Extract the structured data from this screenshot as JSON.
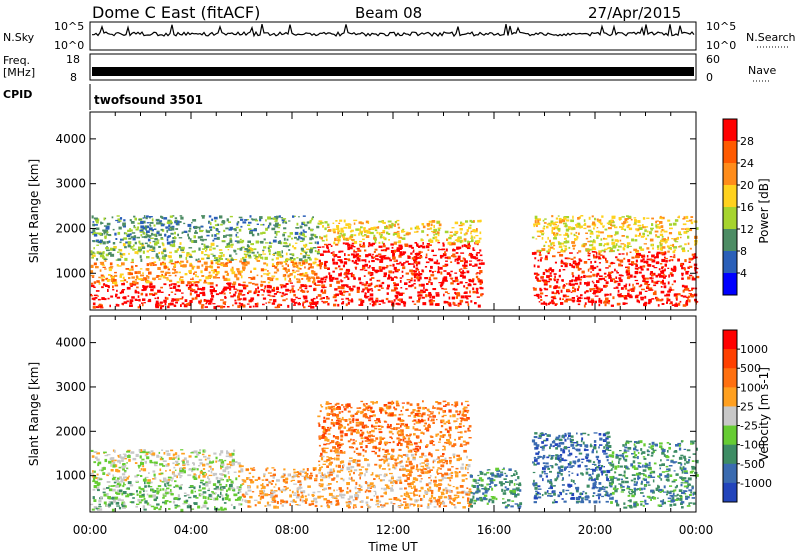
{
  "header": {
    "station": "Dome C East (fitACF)",
    "beam": "Beam 08",
    "date": "27/Apr/2015"
  },
  "top_panels": {
    "nsky_label": "N.Sky",
    "nsky_ticks": [
      "10^5",
      "10^0"
    ],
    "nsky_right_ticks": [
      "10^5",
      "10^0"
    ],
    "nsearch_label": "N.Search",
    "freq_label": "Freq.",
    "freq_unit": "[MHz]",
    "freq_ticks": [
      "18",
      "8"
    ],
    "nave_label": "Nave",
    "nave_ticks": [
      "60",
      "0"
    ],
    "cpid_label": "CPID",
    "cpid_value": "twofsound 3501"
  },
  "chart_data": [
    {
      "type": "heatmap",
      "title": "",
      "xlabel": "Time UT",
      "ylabel": "Slant Range [km]",
      "xticks": [
        "00:00",
        "04:00",
        "08:00",
        "12:00",
        "16:00",
        "20:00",
        "00:00"
      ],
      "xlim_hours": [
        0,
        24
      ],
      "yticks": [
        1000,
        2000,
        3000,
        4000
      ],
      "ylim": [
        180,
        4600
      ],
      "colorbar": {
        "label": "Power [dB]",
        "ticks": [
          "4",
          "8",
          "12",
          "16",
          "20",
          "24",
          "28"
        ],
        "colors": [
          "#0000ff",
          "#2a5fb8",
          "#4d8c64",
          "#a6d42e",
          "#ffd21e",
          "#ff8c1a",
          "#ff5a00",
          "#ff0000"
        ]
      },
      "bands": [
        {
          "t": [
            0.0,
            9.0
          ],
          "r": [
            250,
            800
          ],
          "level": 7
        },
        {
          "t": [
            0.0,
            9.0
          ],
          "r": [
            800,
            1300
          ],
          "level": 5
        },
        {
          "t": [
            0.0,
            9.0
          ],
          "r": [
            1300,
            1700
          ],
          "level": 3
        },
        {
          "t": [
            0.0,
            9.0
          ],
          "r": [
            1700,
            2300
          ],
          "level": 2
        },
        {
          "t": [
            9.0,
            15.5
          ],
          "r": [
            300,
            1700
          ],
          "level": 7
        },
        {
          "t": [
            9.0,
            15.5
          ],
          "r": [
            1700,
            2200
          ],
          "level": 4
        },
        {
          "t": [
            17.5,
            24.0
          ],
          "r": [
            300,
            1500
          ],
          "level": 7
        },
        {
          "t": [
            17.5,
            24.0
          ],
          "r": [
            1500,
            2300
          ],
          "level": 4
        }
      ]
    },
    {
      "type": "heatmap",
      "title": "",
      "xlabel": "Time UT",
      "ylabel": "Slant Range [km]",
      "xticks": [
        "00:00",
        "04:00",
        "08:00",
        "12:00",
        "16:00",
        "20:00",
        "00:00"
      ],
      "xlim_hours": [
        0,
        24
      ],
      "yticks": [
        1000,
        2000,
        3000,
        4000
      ],
      "ylim": [
        180,
        4600
      ],
      "colorbar": {
        "label": "Velocity [m s-1]",
        "ticks": [
          "1000",
          "500",
          "100",
          "25",
          "-25",
          "-100",
          "-500",
          "-1000"
        ],
        "colors": [
          "#2244bb",
          "#3a6bb0",
          "#3d8c64",
          "#66cc33",
          "#c8c8c8",
          "#ffa020",
          "#ff7010",
          "#ff4000",
          "#ff0000"
        ]
      },
      "bands": [
        {
          "t": [
            0.0,
            6.0
          ],
          "r": [
            250,
            900
          ],
          "level": 3
        },
        {
          "t": [
            0.0,
            6.0
          ],
          "r": [
            900,
            1600
          ],
          "level": 4
        },
        {
          "t": [
            6.0,
            9.0
          ],
          "r": [
            300,
            1200
          ],
          "level": 5
        },
        {
          "t": [
            9.0,
            15.0
          ],
          "r": [
            300,
            1500
          ],
          "level": 5
        },
        {
          "t": [
            9.0,
            15.0
          ],
          "r": [
            1500,
            2700
          ],
          "level": 6
        },
        {
          "t": [
            15.0,
            17.0
          ],
          "r": [
            300,
            1200
          ],
          "level": 2
        },
        {
          "t": [
            17.5,
            20.5
          ],
          "r": [
            400,
            2000
          ],
          "level": 1
        },
        {
          "t": [
            20.5,
            24.0
          ],
          "r": [
            300,
            1800
          ],
          "level": 2
        }
      ]
    }
  ]
}
